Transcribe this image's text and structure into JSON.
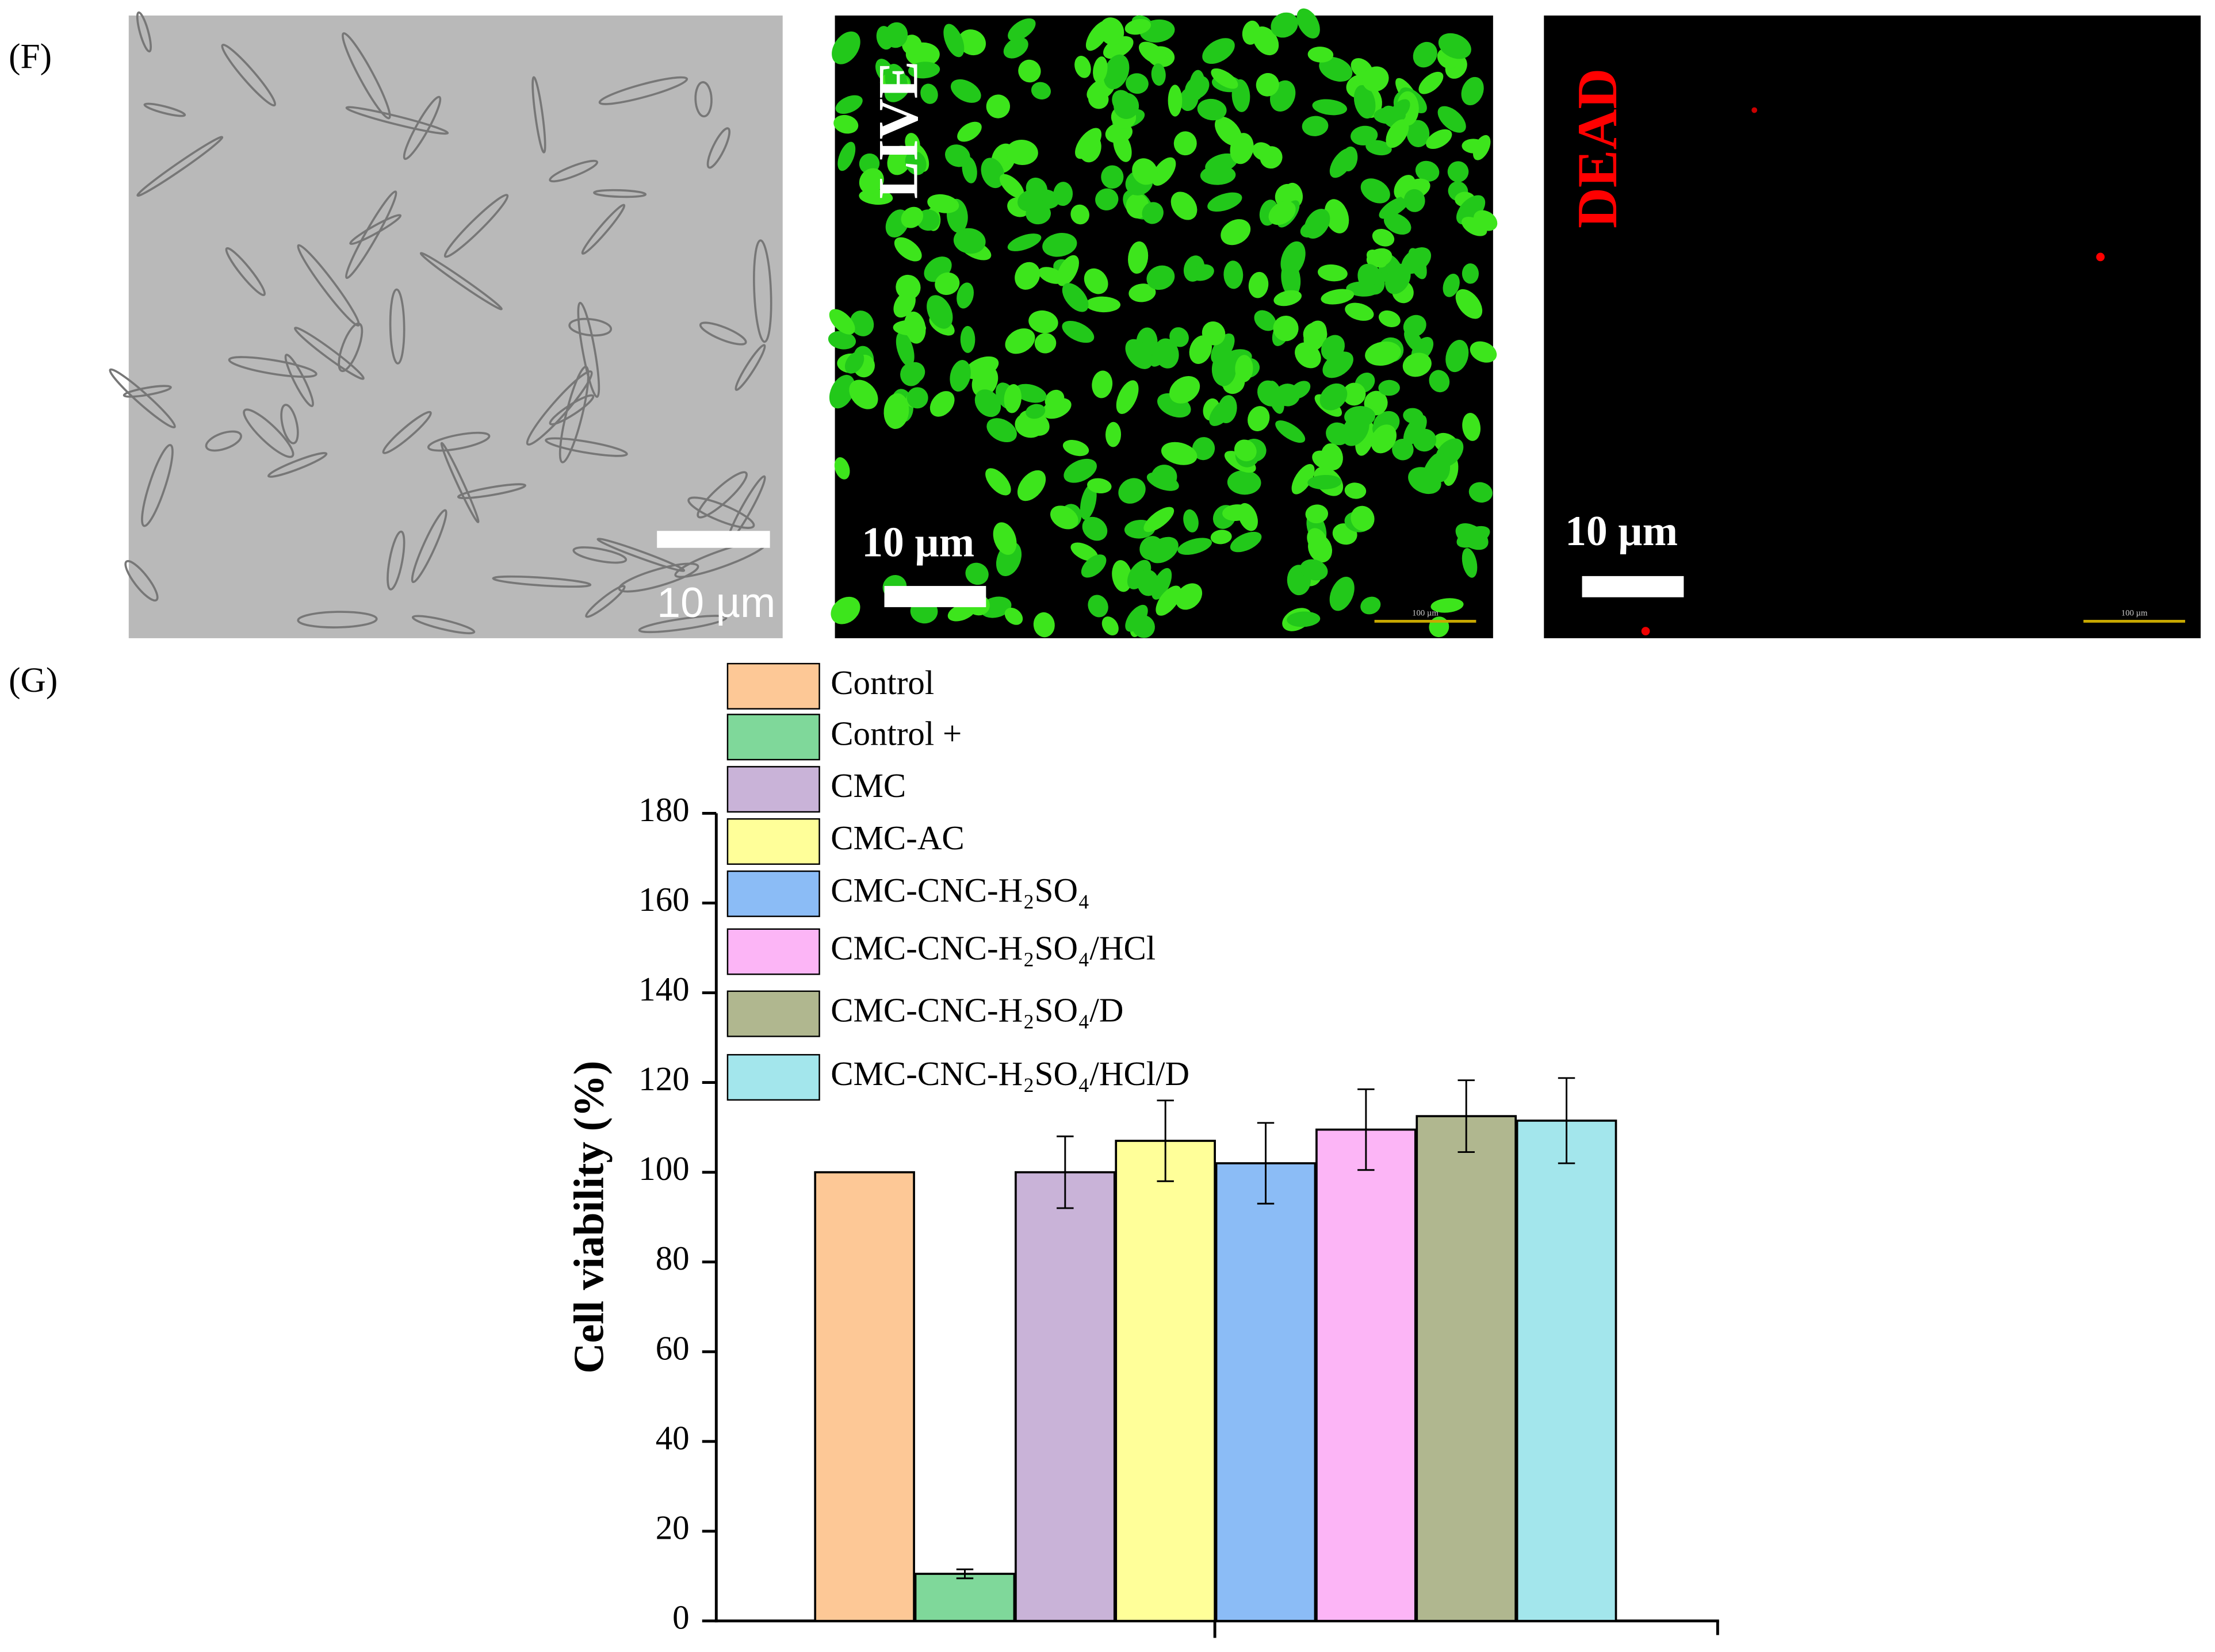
{
  "panel_f": {
    "label": "(F)",
    "images": [
      {
        "scale_label": "10 µm"
      },
      {
        "stain_label": "LIVE",
        "scale_label": "10 µm",
        "scale_bar_label": "100 µm"
      },
      {
        "stain_label": "DEAD",
        "scale_label": "10 µm",
        "scale_bar_label": "100 µm"
      }
    ]
  },
  "chart_data": {
    "type": "bar",
    "panel_label": "(G)",
    "y_label": "Cell viability (%)",
    "ylim": [
      0,
      180
    ],
    "yticks": [
      0,
      20,
      40,
      60,
      80,
      100,
      120,
      140,
      160,
      180
    ],
    "series": [
      {
        "name": "Control",
        "color": "#fdc896",
        "values": [
          100
        ]
      },
      {
        "name": "Control +",
        "color": "#7fd89a",
        "values": [
          10.5
        ],
        "errors": [
          1
        ]
      },
      {
        "name": "CMC",
        "color": "#c9b3d8",
        "values": [
          100
        ],
        "errors": [
          8
        ]
      },
      {
        "name": "CMC-AC",
        "color": "#ffff99",
        "values": [
          107
        ],
        "errors": [
          9
        ]
      },
      {
        "name": "CMC-CNC-H₂SO₄",
        "color": "#8bbcf6",
        "values": [
          102
        ],
        "errors": [
          9
        ]
      },
      {
        "name": "CMC-CNC-H₂SO₄/HCl",
        "color": "#fcb5f6",
        "values": [
          109.5
        ],
        "errors": [
          9
        ]
      },
      {
        "name": "CMC-CNC-H₂SO₄/D",
        "color": "#b0b78f",
        "values": [
          112.5
        ],
        "errors": [
          8
        ]
      },
      {
        "name": "CMC-CNC-H₂SO₄/HCl/D",
        "color": "#a3e6ec",
        "values": [
          111.5
        ],
        "errors": [
          9.5
        ]
      }
    ]
  }
}
